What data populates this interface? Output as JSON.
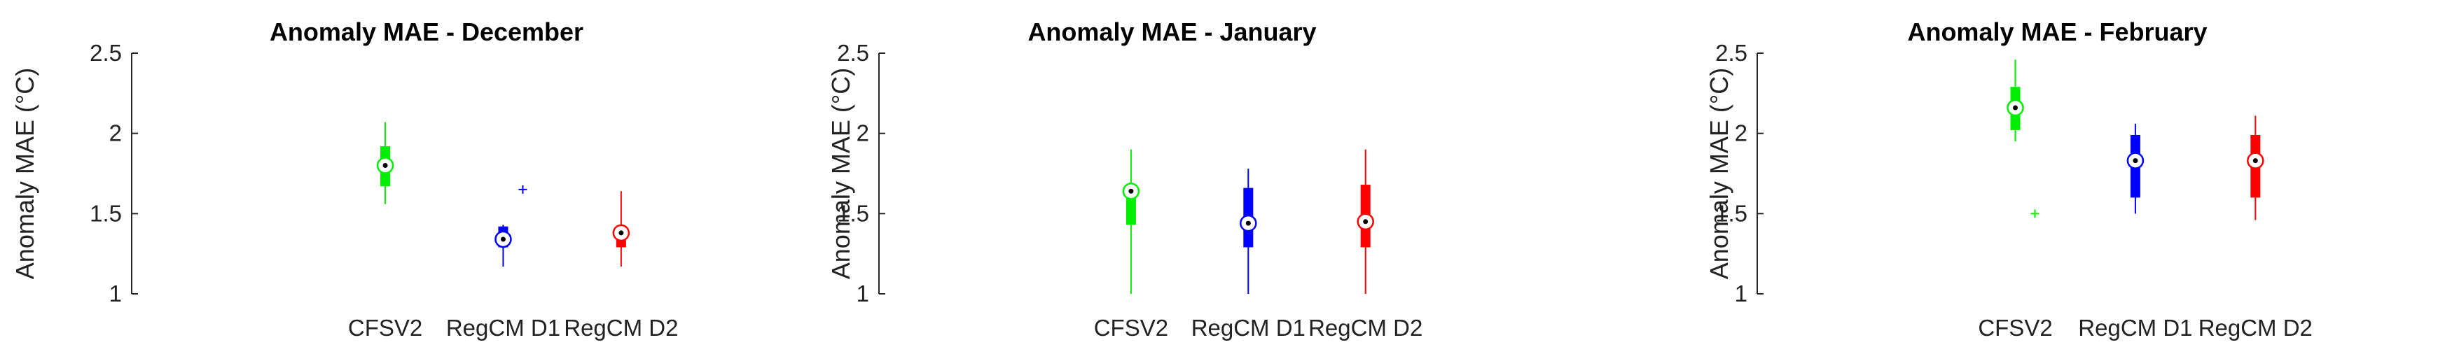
{
  "chart_data": [
    {
      "type": "boxplot",
      "title": "Anomaly MAE - December",
      "ylabel": "Anomaly MAE (°C)",
      "ylim": [
        1,
        2.5
      ],
      "yticks": [
        "1",
        "1.5",
        "2",
        "2.5"
      ],
      "categories": [
        "CFSV2",
        "RegCM D1",
        "RegCM D2"
      ],
      "colors": [
        "#00ee00",
        "#0000ff",
        "#ff0000"
      ],
      "boxes": [
        {
          "min": 1.56,
          "q1": 1.67,
          "median": 1.8,
          "q3": 1.92,
          "max": 2.07,
          "outliers": []
        },
        {
          "min": 1.17,
          "q1": 1.29,
          "median": 1.34,
          "q3": 1.42,
          "max": 1.43,
          "outliers": [
            1.65
          ]
        },
        {
          "min": 1.17,
          "q1": 1.29,
          "median": 1.38,
          "q3": 1.42,
          "max": 1.64,
          "outliers": []
        }
      ]
    },
    {
      "type": "boxplot",
      "title": "Anomaly MAE - January",
      "ylabel": "Anomaly MAE (°C)",
      "ylim": [
        1,
        2.5
      ],
      "yticks": [
        "1",
        "1.5",
        "2",
        "2.5"
      ],
      "categories": [
        "CFSV2",
        "RegCM D1",
        "RegCM D2"
      ],
      "colors": [
        "#00ee00",
        "#0000ff",
        "#ff0000"
      ],
      "boxes": [
        {
          "min": 1.0,
          "q1": 1.43,
          "median": 1.64,
          "q3": 1.66,
          "max": 1.9,
          "outliers": []
        },
        {
          "min": 1.0,
          "q1": 1.29,
          "median": 1.44,
          "q3": 1.66,
          "max": 1.78,
          "outliers": []
        },
        {
          "min": 1.0,
          "q1": 1.29,
          "median": 1.45,
          "q3": 1.68,
          "max": 1.9,
          "outliers": []
        }
      ]
    },
    {
      "type": "boxplot",
      "title": "Anomaly MAE - February",
      "ylabel": "Anomaly MAE (°C)",
      "ylim": [
        1,
        2.5
      ],
      "yticks": [
        "1",
        "1.5",
        "2",
        "2.5"
      ],
      "categories": [
        "CFSV2",
        "RegCM D1",
        "RegCM D2"
      ],
      "colors": [
        "#00ee00",
        "#0000ff",
        "#ff0000"
      ],
      "boxes": [
        {
          "min": 1.95,
          "q1": 2.02,
          "median": 2.16,
          "q3": 2.29,
          "max": 2.46,
          "outliers": [
            1.5
          ]
        },
        {
          "min": 1.5,
          "q1": 1.6,
          "median": 1.83,
          "q3": 1.99,
          "max": 2.06,
          "outliers": []
        },
        {
          "min": 1.46,
          "q1": 1.6,
          "median": 1.83,
          "q3": 1.99,
          "max": 2.11,
          "outliers": []
        }
      ]
    }
  ]
}
